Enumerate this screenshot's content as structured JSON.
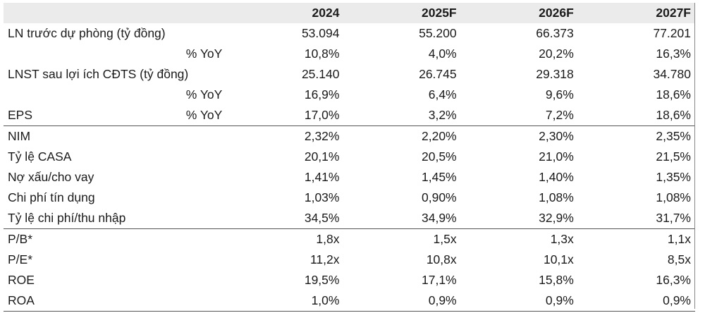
{
  "columns": [
    "2024",
    "2025F",
    "2026F",
    "2027F"
  ],
  "rows": [
    {
      "label": "LN trước dự phòng (tỷ đồng)",
      "sub": "",
      "values": [
        "53.094",
        "55.200",
        "66.373",
        "77.201"
      ]
    },
    {
      "label": "",
      "sub": "% YoY",
      "values": [
        "10,8%",
        "4,0%",
        "20,2%",
        "16,3%"
      ]
    },
    {
      "label": "LNST sau lợi ích CĐTS (tỷ đồng)",
      "sub": "",
      "values": [
        "25.140",
        "26.745",
        "29.318",
        "34.780"
      ]
    },
    {
      "label": "",
      "sub": "% YoY",
      "values": [
        "16,9%",
        "6,4%",
        "9,6%",
        "18,6%"
      ]
    },
    {
      "label": "EPS",
      "sub": "% YoY",
      "values": [
        "17,0%",
        "3,2%",
        "7,2%",
        "18,6%"
      ]
    },
    {
      "label": "NIM",
      "sub": "",
      "values": [
        "2,32%",
        "2,20%",
        "2,30%",
        "2,35%"
      ]
    },
    {
      "label": "Tỷ lệ CASA",
      "sub": "",
      "values": [
        "20,1%",
        "20,5%",
        "21,0%",
        "21,5%"
      ]
    },
    {
      "label": "Nợ xấu/cho vay",
      "sub": "",
      "values": [
        "1,41%",
        "1,45%",
        "1,40%",
        "1,35%"
      ]
    },
    {
      "label": "Chi phí tín dụng",
      "sub": "",
      "values": [
        "1,03%",
        "0,90%",
        "1,08%",
        "1,08%"
      ]
    },
    {
      "label": "Tỷ lệ chi phí/thu nhập",
      "sub": "",
      "values": [
        "34,5%",
        "34,9%",
        "32,9%",
        "31,7%"
      ]
    },
    {
      "label": "P/B*",
      "sub": "",
      "values": [
        "1,8x",
        "1,5x",
        "1,3x",
        "1,1x"
      ]
    },
    {
      "label": "P/E*",
      "sub": "",
      "values": [
        "11,2x",
        "10,8x",
        "10,1x",
        "8,5x"
      ]
    },
    {
      "label": "ROE",
      "sub": "",
      "values": [
        "19,5%",
        "17,1%",
        "15,8%",
        "16,3%"
      ]
    },
    {
      "label": "ROA",
      "sub": "",
      "values": [
        "1,0%",
        "0,9%",
        "0,9%",
        "0,9%"
      ]
    }
  ]
}
